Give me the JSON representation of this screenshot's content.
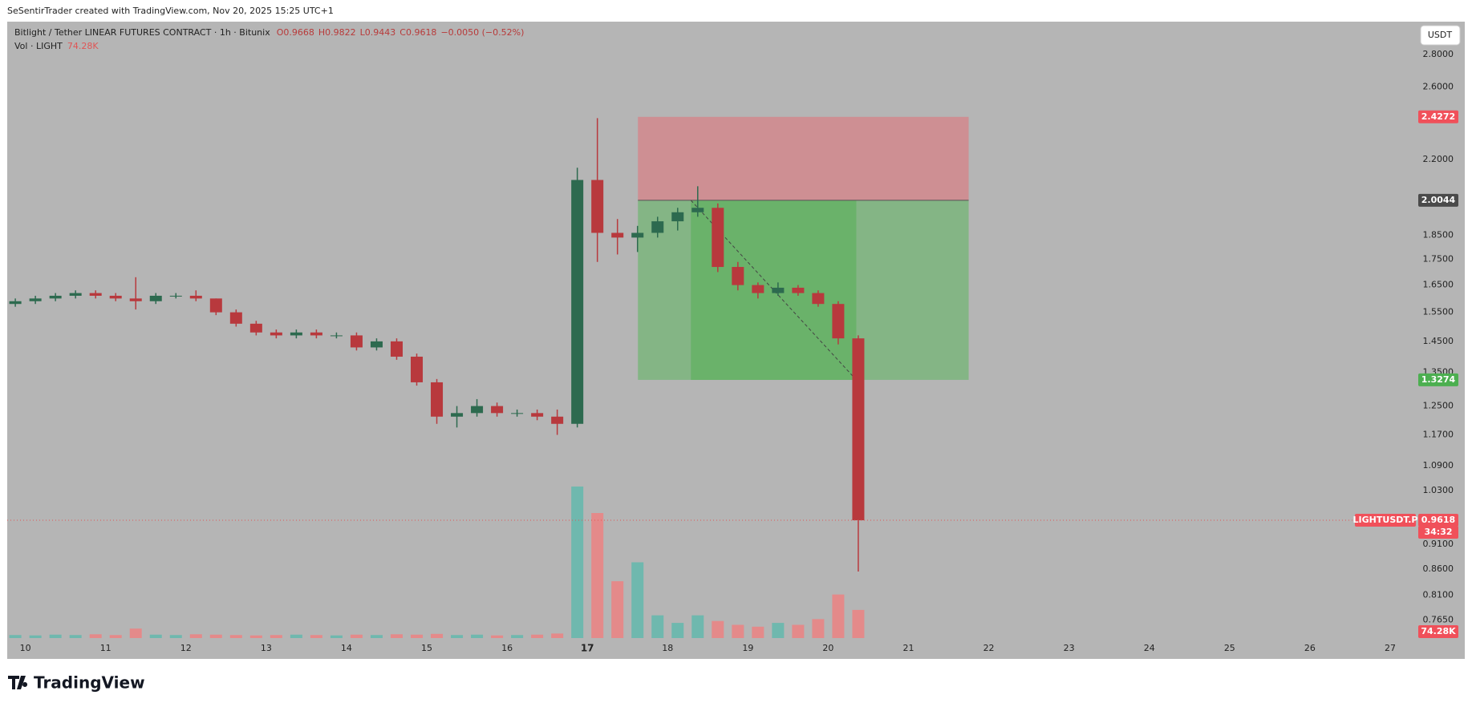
{
  "watermark": "SeSentirTrader created with TradingView.com, Nov 20, 2025 15:25 UTC+1",
  "brand": "TradingView",
  "currency_button": "USDT",
  "chart_data": {
    "type": "candlestick",
    "title": "Bitlight / Tether LINEAR FUTURES CONTRACT · 1h · Bitunix",
    "legend_values": [
      "O0.9668",
      "H0.9822",
      "L0.9443",
      "C0.9618",
      "−0.0050 (−0.52%)"
    ],
    "volume_title": "Vol · LIGHT",
    "x": [
      9.875,
      10.125,
      10.375,
      10.625,
      10.875,
      11.125,
      11.375,
      11.625,
      11.875,
      12.125,
      12.375,
      12.625,
      12.875,
      13.125,
      13.375,
      13.625,
      13.875,
      14.125,
      14.375,
      14.625,
      14.875,
      15.125,
      15.375,
      15.625,
      15.875,
      16.125,
      16.375,
      16.625,
      16.875,
      17.125,
      17.375,
      17.625,
      17.875,
      18.125,
      18.375,
      18.625,
      18.875,
      19.125,
      19.375,
      19.625,
      19.875,
      20.125,
      20.375
    ],
    "open": [
      1.58,
      1.59,
      1.6,
      1.61,
      1.62,
      1.61,
      1.6,
      1.59,
      1.61,
      1.61,
      1.6,
      1.55,
      1.51,
      1.48,
      1.47,
      1.48,
      1.47,
      1.47,
      1.43,
      1.45,
      1.4,
      1.32,
      1.22,
      1.23,
      1.25,
      1.23,
      1.23,
      1.22,
      1.2,
      2.1,
      1.86,
      1.84,
      1.86,
      1.91,
      1.95,
      1.97,
      1.72,
      1.65,
      1.62,
      1.64,
      1.62,
      1.58,
      1.46
    ],
    "high": [
      1.6,
      1.61,
      1.62,
      1.63,
      1.63,
      1.62,
      1.68,
      1.62,
      1.62,
      1.63,
      1.6,
      1.56,
      1.52,
      1.49,
      1.49,
      1.49,
      1.48,
      1.48,
      1.46,
      1.46,
      1.41,
      1.33,
      1.25,
      1.27,
      1.26,
      1.24,
      1.24,
      1.24,
      2.16,
      2.42,
      1.92,
      1.89,
      1.93,
      1.97,
      2.07,
      1.99,
      1.74,
      1.66,
      1.66,
      1.65,
      1.63,
      1.59,
      1.47
    ],
    "low": [
      1.57,
      1.58,
      1.59,
      1.6,
      1.6,
      1.59,
      1.56,
      1.58,
      1.6,
      1.59,
      1.54,
      1.5,
      1.47,
      1.46,
      1.46,
      1.46,
      1.46,
      1.42,
      1.42,
      1.39,
      1.31,
      1.2,
      1.19,
      1.22,
      1.22,
      1.22,
      1.21,
      1.17,
      1.19,
      1.74,
      1.77,
      1.78,
      1.84,
      1.87,
      1.93,
      1.7,
      1.63,
      1.6,
      1.61,
      1.61,
      1.57,
      1.44,
      0.855
    ],
    "close": [
      1.59,
      1.6,
      1.61,
      1.62,
      1.61,
      1.6,
      1.59,
      1.61,
      1.61,
      1.6,
      1.55,
      1.51,
      1.48,
      1.47,
      1.48,
      1.47,
      1.47,
      1.43,
      1.45,
      1.4,
      1.32,
      1.22,
      1.23,
      1.25,
      1.23,
      1.23,
      1.22,
      1.2,
      2.1,
      1.86,
      1.84,
      1.86,
      1.91,
      1.95,
      1.97,
      1.72,
      1.65,
      1.62,
      1.64,
      1.62,
      1.58,
      1.46,
      0.9618
    ],
    "volume": [
      8,
      7,
      9,
      8,
      10,
      8,
      25,
      9,
      8,
      10,
      9,
      8,
      7,
      8,
      9,
      8,
      7,
      9,
      8,
      10,
      9,
      11,
      8,
      9,
      7,
      8,
      9,
      12,
      400,
      330,
      150,
      200,
      60,
      40,
      60,
      45,
      35,
      30,
      40,
      35,
      50,
      115,
      74.28
    ],
    "value_labels": {
      "42": "74.28K"
    },
    "vlim": [
      0,
      1627
    ],
    "up_color": "#2d6a4f",
    "down_color": "#b8393d",
    "volume_up_color": "#6fb8ae",
    "volume_down_color": "#e48a8a",
    "xlim": [
      9.774,
      27.32
    ],
    "xticks": [
      10,
      11,
      12,
      13,
      14,
      15,
      16,
      17,
      18,
      19,
      20,
      21,
      22,
      23,
      24,
      25,
      26,
      27
    ],
    "xtick_bold": 17,
    "ylim": [
      0.734,
      3.02
    ],
    "log_scale": true,
    "grid": false,
    "yticks": [
      {
        "value": 0.765,
        "label": "0.7650"
      },
      {
        "value": 0.81,
        "label": "0.8100"
      },
      {
        "value": 0.86,
        "label": "0.8600"
      },
      {
        "value": 0.91,
        "label": "0.9100"
      },
      {
        "value": 1.03,
        "label": "1.0300"
      },
      {
        "value": 1.09,
        "label": "1.0900"
      },
      {
        "value": 1.17,
        "label": "1.1700"
      },
      {
        "value": 1.25,
        "label": "1.2500"
      },
      {
        "value": 1.35,
        "label": "1.3500"
      },
      {
        "value": 1.45,
        "label": "1.4500"
      },
      {
        "value": 1.55,
        "label": "1.5500"
      },
      {
        "value": 1.65,
        "label": "1.6500"
      },
      {
        "value": 1.75,
        "label": "1.7500"
      },
      {
        "value": 1.85,
        "label": "1.8500"
      },
      {
        "value": 2.2,
        "label": "2.2000"
      },
      {
        "value": 2.6,
        "label": "2.6000"
      },
      {
        "value": 2.8,
        "label": "2.8000"
      }
    ],
    "position": {
      "start": 17.63,
      "end": 21.75,
      "fill_start": 18.29,
      "fill_end": 20.35,
      "stop": 2.4272,
      "entry": 2.0044,
      "target": 1.3274
    },
    "last": {
      "symbol": "LIGHTUSDT.P",
      "price": 0.9618,
      "countdown": "34:32"
    }
  }
}
